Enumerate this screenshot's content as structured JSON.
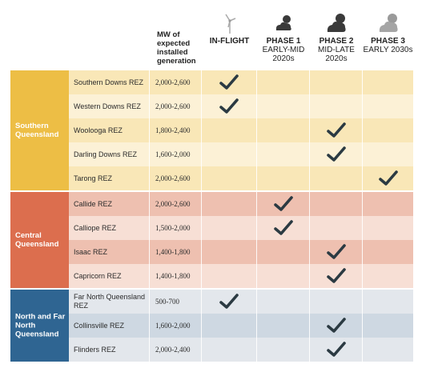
{
  "header": {
    "mw_label": "MW of expected installed generation",
    "columns": [
      {
        "title": "IN-FLIGHT",
        "subtitle": "",
        "icon": "wind-turbine-small-icon"
      },
      {
        "title": "PHASE 1",
        "subtitle": "EARLY-MID 2020s",
        "icon": "cloud-sun-icon"
      },
      {
        "title": "PHASE 2",
        "subtitle": "MID-LATE 2020s",
        "icon": "cloud-sun-bigger-icon"
      },
      {
        "title": "PHASE 3",
        "subtitle": "EARLY 2030s",
        "icon": "cloud-sun-gray-icon"
      }
    ]
  },
  "regions": [
    {
      "name": "Southern Queensland",
      "label_color": "#edbe45",
      "row_colors": [
        "#f9e7b7",
        "#fcf1d6"
      ],
      "rows": [
        {
          "rez": "Southern Downs REZ",
          "mw": "2,000-2,600",
          "phase": 0
        },
        {
          "rez": "Western Downs REZ",
          "mw": "2,000-2,600",
          "phase": 0
        },
        {
          "rez": "Woolooga REZ",
          "mw": "1,800-2,400",
          "phase": 2
        },
        {
          "rez": "Darling Downs REZ",
          "mw": "1,600-2,000",
          "phase": 2
        },
        {
          "rez": "Tarong REZ",
          "mw": "2,000-2,600",
          "phase": 3
        }
      ]
    },
    {
      "name": "Central Queensland",
      "label_color": "#dc6e4e",
      "row_colors": [
        "#eec0b0",
        "#f7dfd5"
      ],
      "rows": [
        {
          "rez": "Callide REZ",
          "mw": "2,000-2,600",
          "phase": 1
        },
        {
          "rez": "Calliope REZ",
          "mw": "1,500-2,000",
          "phase": 1
        },
        {
          "rez": "Isaac REZ",
          "mw": "1,400-1,800",
          "phase": 2
        },
        {
          "rez": "Capricorn REZ",
          "mw": "1,400-1,800",
          "phase": 2
        }
      ]
    },
    {
      "name": "North and Far North Queensland",
      "label_color": "#2f6592",
      "row_colors": [
        "#e3e7ec",
        "#ced8e2"
      ],
      "rows": [
        {
          "rez": "Far North Queensland REZ",
          "mw": "500-700",
          "phase": 0
        },
        {
          "rez": "Collinsville REZ",
          "mw": "1,600-2,000",
          "phase": 2
        },
        {
          "rez": "Flinders REZ",
          "mw": "2,000-2,400",
          "phase": 2
        }
      ]
    }
  ],
  "colors": {
    "check": "#2b3a42"
  }
}
